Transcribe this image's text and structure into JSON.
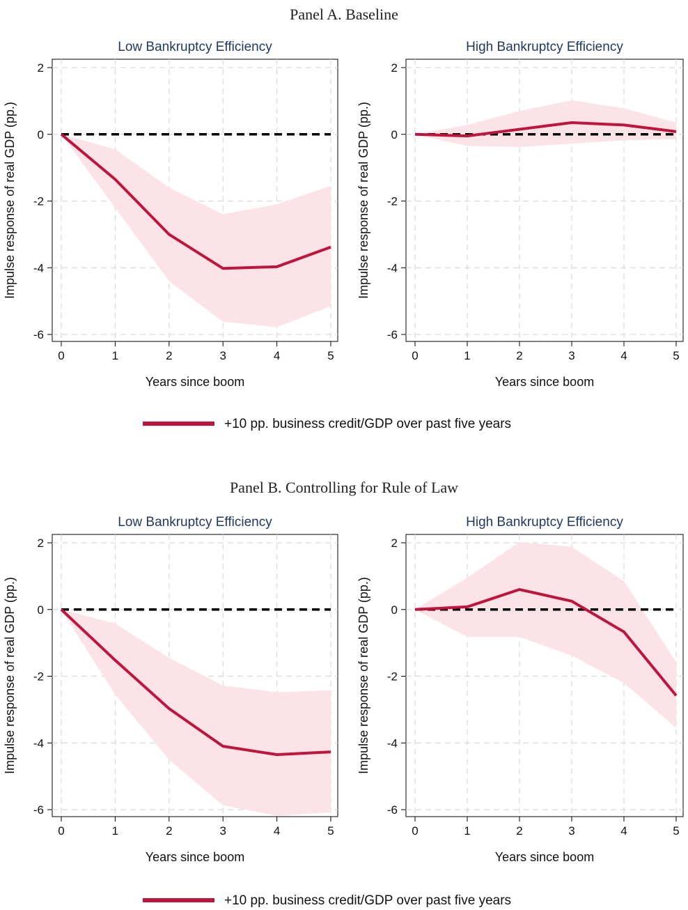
{
  "colors": {
    "line": "#c0143c",
    "ci_band": "#fbe3e8",
    "zero_line": "#000000",
    "grid": "#d9d9d9",
    "subplot_title": "#1f3864"
  },
  "panels": [
    {
      "title": "Panel A. Baseline"
    },
    {
      "title": "Panel B. Controlling for Rule of Law"
    }
  ],
  "legend": {
    "label": "+10 pp. business credit/GDP over past five years"
  },
  "chart_data": [
    {
      "type": "line",
      "panel": "Panel A. Baseline",
      "title": "Low Bankruptcy Efficiency",
      "xlabel": "Years since boom",
      "ylabel": "Impulse response of real GDP (pp.)",
      "x": [
        0,
        1,
        2,
        3,
        4,
        5
      ],
      "xlim": [
        0,
        5
      ],
      "ylim": [
        -6,
        2
      ],
      "yticks": [
        2,
        0,
        -2,
        -4,
        -6
      ],
      "grid": true,
      "series": [
        {
          "name": "+10 pp. business credit/GDP over past five years",
          "values": [
            0,
            -1.35,
            -3.0,
            -4.02,
            -3.97,
            -3.38
          ],
          "ci_lower": [
            0,
            -2.2,
            -4.4,
            -5.62,
            -5.78,
            -5.15
          ],
          "ci_upper": [
            0,
            -0.45,
            -1.6,
            -2.4,
            -2.1,
            -1.55
          ]
        }
      ]
    },
    {
      "type": "line",
      "panel": "Panel A. Baseline",
      "title": "High Bankruptcy Efficiency",
      "xlabel": "Years since boom",
      "ylabel": "Impulse response of real GDP (pp.)",
      "x": [
        0,
        1,
        2,
        3,
        4,
        5
      ],
      "xlim": [
        0,
        5
      ],
      "ylim": [
        -6,
        2
      ],
      "yticks": [
        2,
        0,
        -2,
        -4,
        -6
      ],
      "grid": true,
      "series": [
        {
          "name": "+10 pp. business credit/GDP over past five years",
          "values": [
            0,
            -0.05,
            0.15,
            0.35,
            0.28,
            0.08
          ],
          "ci_lower": [
            0,
            -0.35,
            -0.38,
            -0.28,
            -0.18,
            -0.15
          ],
          "ci_upper": [
            0,
            0.28,
            0.7,
            1.02,
            0.78,
            0.35
          ]
        }
      ]
    },
    {
      "type": "line",
      "panel": "Panel B. Controlling for Rule of Law",
      "title": "Low Bankruptcy Efficiency",
      "xlabel": "Years since boom",
      "ylabel": "Impulse response of real GDP (pp.)",
      "x": [
        0,
        1,
        2,
        3,
        4,
        5
      ],
      "xlim": [
        0,
        5
      ],
      "ylim": [
        -6,
        2
      ],
      "yticks": [
        2,
        0,
        -2,
        -4,
        -6
      ],
      "grid": true,
      "series": [
        {
          "name": "+10 pp. business credit/GDP over past five years",
          "values": [
            0,
            -1.52,
            -2.97,
            -4.1,
            -4.35,
            -4.27
          ],
          "ci_lower": [
            0,
            -2.55,
            -4.5,
            -5.87,
            -6.18,
            -6.08
          ],
          "ci_upper": [
            0,
            -0.42,
            -1.45,
            -2.28,
            -2.48,
            -2.42
          ]
        }
      ]
    },
    {
      "type": "line",
      "panel": "Panel B. Controlling for Rule of Law",
      "title": "High Bankruptcy Efficiency",
      "xlabel": "Years since boom",
      "ylabel": "Impulse response of real GDP (pp.)",
      "x": [
        0,
        1,
        2,
        3,
        4,
        5
      ],
      "xlim": [
        0,
        5
      ],
      "ylim": [
        -6,
        2
      ],
      "yticks": [
        2,
        0,
        -2,
        -4,
        -6
      ],
      "grid": true,
      "series": [
        {
          "name": "+10 pp. business credit/GDP over past five years",
          "values": [
            0,
            0.08,
            0.6,
            0.25,
            -0.67,
            -2.58
          ],
          "ci_lower": [
            0,
            -0.82,
            -0.82,
            -1.38,
            -2.2,
            -3.55
          ],
          "ci_upper": [
            0,
            0.95,
            2.02,
            1.88,
            0.85,
            -1.58
          ]
        }
      ]
    }
  ]
}
